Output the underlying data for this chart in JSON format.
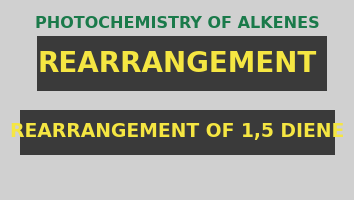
{
  "bg_color": "#d0d0d0",
  "title_text": "PHOTOCHEMISTRY OF ALKENES",
  "title_color": "#1a7a4a",
  "banner1_bg": "#3a3a3a",
  "banner1_text": "REARRANGEMENT",
  "banner1_text_color": "#f5e642",
  "banner2_bg": "#3a3a3a",
  "banner2_text": "REARRANGEMENT OF 1,5 DIENE",
  "banner2_text_color": "#f5e642",
  "title_fontsize": 11.5,
  "banner1_fontsize": 20,
  "banner2_fontsize": 13.5
}
